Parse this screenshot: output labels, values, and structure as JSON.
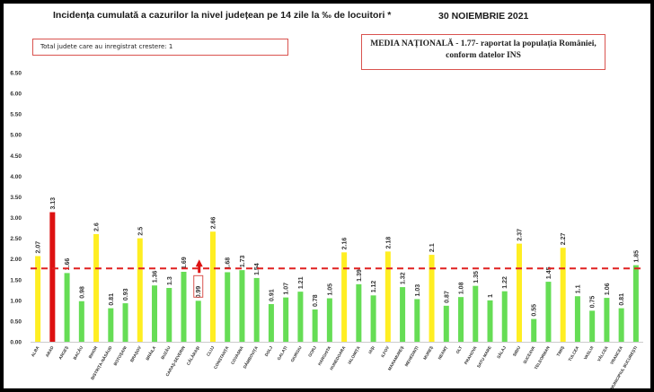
{
  "header": {
    "title": "Incidența cumulată a cazurilor la nivel județean pe 14 zile la ‰ de locuitori *",
    "date": "30 NOIEMBRIE 2021"
  },
  "notes": {
    "increase_count": "Total judete care au inregistrat crestere: 1",
    "national_average_line1": "MEDIA NAȚIONALĂ  - 1.77-  raportat la populația României,",
    "national_average_line2": "conform datelor INS"
  },
  "colors": {
    "green": "#66dd55",
    "yellow": "#ffee22",
    "red": "#dd1111",
    "average_line": "#e02020",
    "marker": "#d9534f"
  },
  "chart_data": {
    "type": "bar",
    "ylim": [
      0,
      6.5
    ],
    "yticks": [
      "0.00",
      "0.50",
      "1.00",
      "1.50",
      "2.00",
      "2.50",
      "3.00",
      "3.50",
      "4.00",
      "4.50",
      "5.00",
      "5.50",
      "6.00",
      "6.50"
    ],
    "reference_line": {
      "value": 1.77,
      "style": "dashed"
    },
    "increase_marker": {
      "category": "CĂLĂRAȘI",
      "symbol": "up-arrow",
      "boxed_value": "0.99"
    },
    "categories": [
      "ALBA",
      "ARAD",
      "ARGEȘ",
      "BACĂU",
      "BIHOR",
      "BISTRIȚA-NĂSĂUD",
      "BOTOȘANI",
      "BRAȘOV",
      "BRĂILA",
      "BUZĂU",
      "CARAȘ-SEVERIN",
      "CĂLĂRAȘI",
      "CLUJ",
      "CONSTANȚA",
      "COVASNA",
      "DÂMBOVIȚA",
      "DOLJ",
      "GALAȚI",
      "GIURGIU",
      "GORJ",
      "HARGHITA",
      "HUNEDOARA",
      "IALOMIȚA",
      "IAȘI",
      "ILFOV",
      "MARAMUREȘ",
      "MEHEDINȚI",
      "MUREȘ",
      "NEAMȚ",
      "OLT",
      "PRAHOVA",
      "SATU MARE",
      "SĂLAJ",
      "SIBIU",
      "SUCEAVA",
      "TELEORMAN",
      "TIMIȘ",
      "TULCEA",
      "VASLUI",
      "VÂLCEA",
      "VRANCEA",
      "MUNICIPIUL BUCUREȘTI"
    ],
    "values": [
      2.07,
      3.13,
      1.66,
      0.98,
      2.6,
      0.81,
      0.93,
      2.5,
      1.36,
      1.3,
      1.69,
      0.99,
      2.66,
      1.68,
      1.73,
      1.54,
      0.91,
      1.07,
      1.21,
      0.78,
      1.05,
      2.16,
      1.39,
      1.12,
      2.18,
      1.32,
      1.03,
      2.1,
      0.87,
      1.08,
      1.35,
      1,
      1.22,
      2.37,
      0.55,
      1.45,
      2.27,
      1.1,
      0.75,
      1.06,
      0.81,
      1.85
    ],
    "value_labels": [
      "2.07",
      "3.13",
      "1.66",
      "0.98",
      "2.6",
      "0.81",
      "0.93",
      "2.5",
      "1.36",
      "1.3",
      "1.69",
      "0.99",
      "2.66",
      "1.68",
      "1.73",
      "1.54",
      "0.91",
      "1.07",
      "1.21",
      "0.78",
      "1.05",
      "2.16",
      "1.39",
      "1.12",
      "2.18",
      "1.32",
      "1.03",
      "2.1",
      "0.87",
      "1.08",
      "1.35",
      "1",
      "1.22",
      "2.37",
      "0.55",
      "1.45",
      "2.27",
      "1.1",
      "0.75",
      "1.06",
      "0.81",
      "1.85"
    ],
    "bar_colors": [
      "yellow",
      "red",
      "green",
      "green",
      "yellow",
      "green",
      "green",
      "yellow",
      "green",
      "green",
      "green",
      "green",
      "yellow",
      "green",
      "green",
      "green",
      "green",
      "green",
      "green",
      "green",
      "green",
      "yellow",
      "green",
      "green",
      "yellow",
      "green",
      "green",
      "yellow",
      "green",
      "green",
      "green",
      "green",
      "green",
      "yellow",
      "green",
      "green",
      "yellow",
      "green",
      "green",
      "green",
      "green",
      "green"
    ]
  }
}
